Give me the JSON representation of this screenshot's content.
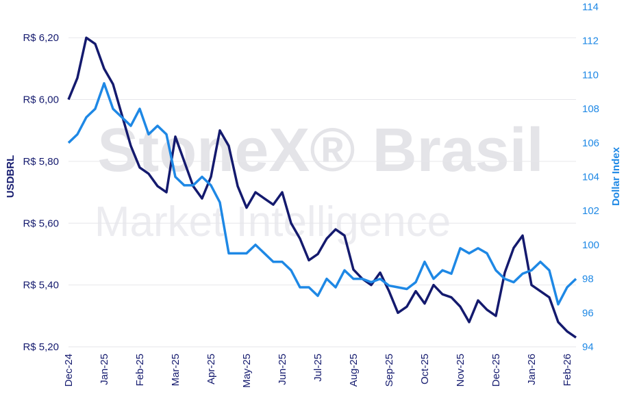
{
  "chart_data": {
    "type": "line",
    "watermark": [
      "StoneX® Brasil",
      "Market Intelligence"
    ],
    "ylabel": "USDBRL",
    "y2label": "Dollar Index",
    "categories": [
      "Dec-24",
      null,
      null,
      null,
      "Jan-25",
      null,
      null,
      null,
      "Feb-25",
      null,
      null,
      null,
      "Mar-25",
      null,
      null,
      null,
      "Apr-25",
      null,
      null,
      null,
      "May-25",
      null,
      null,
      null,
      "Jun-25",
      null,
      null,
      null,
      "Jul-25",
      null,
      null,
      null,
      "Aug-25",
      null,
      null,
      null,
      "Sep-25",
      null,
      null,
      null,
      "Oct-25",
      null,
      null,
      null,
      "Nov-25",
      null,
      null,
      null,
      "Dec-25",
      null,
      null,
      null,
      "Jan-26",
      null,
      null,
      null,
      "Feb-26",
      null
    ],
    "series": [
      {
        "name": "USDBRL",
        "color": "#141a6e",
        "values": [
          6.0,
          6.07,
          6.2,
          6.18,
          6.1,
          6.05,
          5.95,
          5.85,
          5.78,
          5.76,
          5.72,
          5.7,
          5.88,
          5.8,
          5.72,
          5.68,
          5.75,
          5.9,
          5.85,
          5.72,
          5.65,
          5.7,
          5.68,
          5.66,
          5.7,
          5.6,
          5.55,
          5.48,
          5.5,
          5.55,
          5.58,
          5.56,
          5.45,
          5.42,
          5.4,
          5.44,
          5.38,
          5.31,
          5.33,
          5.38,
          5.34,
          5.4,
          5.37,
          5.36,
          5.33,
          5.28,
          5.35,
          5.32,
          5.3,
          5.44,
          5.52,
          5.56,
          5.4,
          5.38,
          5.36,
          5.28,
          5.25,
          5.23
        ]
      },
      {
        "name": "Dollar Index",
        "color": "#1e88e5",
        "axis": "y2",
        "values": [
          106,
          106.5,
          107.5,
          108,
          109.5,
          108,
          107.5,
          107,
          108,
          106.5,
          107,
          106.5,
          104,
          103.5,
          103.5,
          104,
          103.5,
          102.5,
          99.5,
          99.5,
          99.5,
          100,
          99.5,
          99,
          99,
          98.5,
          97.5,
          97.5,
          97,
          98,
          97.5,
          98.5,
          98,
          98,
          97.8,
          98,
          97.6,
          97.5,
          97.4,
          97.8,
          99,
          98,
          98.5,
          98.3,
          99.8,
          99.5,
          99.8,
          99.5,
          98.5,
          98,
          97.8,
          98.3,
          98.5,
          99,
          98.5,
          96.5,
          97.5,
          98
        ]
      }
    ],
    "ylim": [
      5.2,
      6.3
    ],
    "yticks": [
      {
        "value": 5.2,
        "label": "R$ 5,20"
      },
      {
        "value": 5.4,
        "label": "R$ 5,40"
      },
      {
        "value": 5.6,
        "label": "R$ 5,60"
      },
      {
        "value": 5.8,
        "label": "R$ 5,80"
      },
      {
        "value": 6.0,
        "label": "R$ 6,00"
      },
      {
        "value": 6.2,
        "label": "R$ 6,20"
      }
    ],
    "y2lim": [
      94,
      114
    ],
    "y2ticks": [
      94,
      96,
      98,
      100,
      102,
      104,
      106,
      108,
      110,
      112,
      114
    ],
    "grid": true
  }
}
